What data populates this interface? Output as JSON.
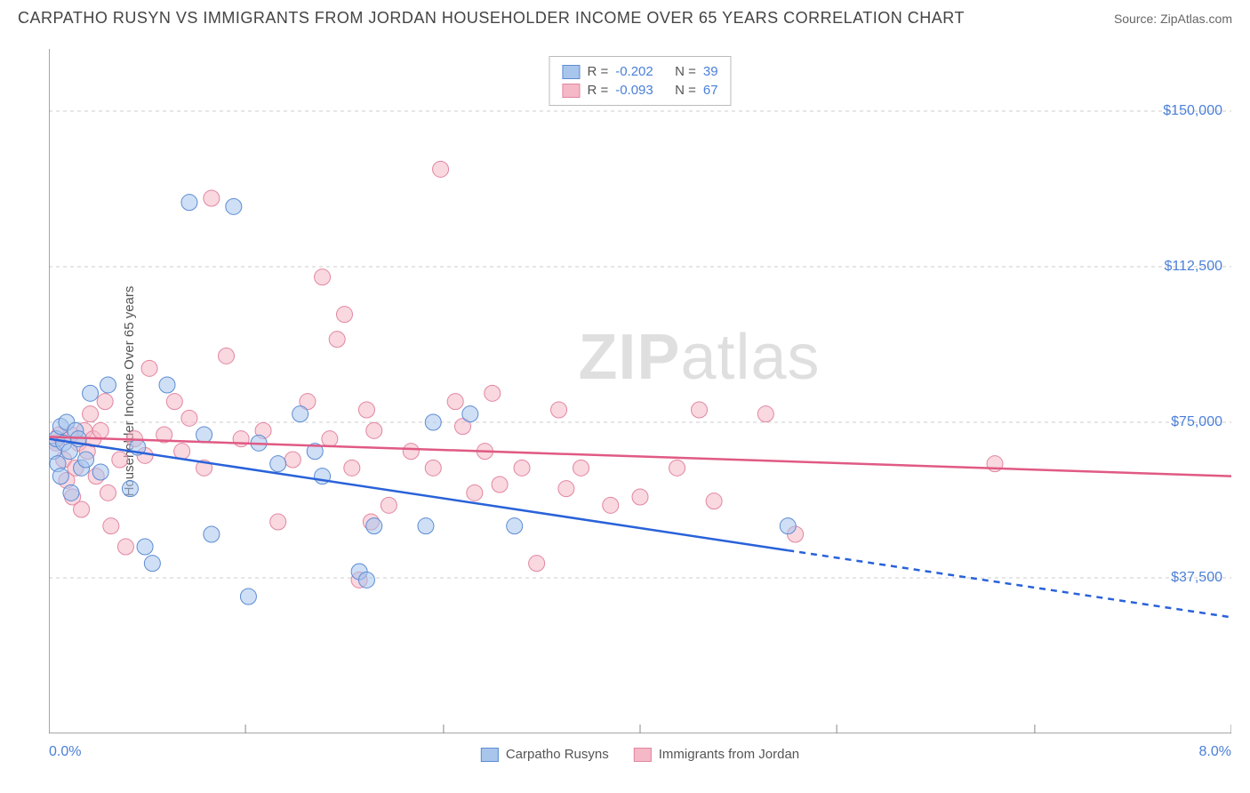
{
  "header": {
    "title": "CARPATHO RUSYN VS IMMIGRANTS FROM JORDAN HOUSEHOLDER INCOME OVER 65 YEARS CORRELATION CHART",
    "source_label": "Source: ZipAtlas.com"
  },
  "ylabel": "Householder Income Over 65 years",
  "watermark": {
    "bold": "ZIP",
    "rest": "atlas"
  },
  "stats": {
    "series1": {
      "R_label": "R =",
      "R": "-0.202",
      "N_label": "N =",
      "N": "39"
    },
    "series2": {
      "R_label": "R =",
      "R": "-0.093",
      "N_label": "N =",
      "N": "67"
    }
  },
  "legend": {
    "series1": "Carpatho Rusyns",
    "series2": "Immigrants from Jordan"
  },
  "axes": {
    "xlim": [
      0,
      8
    ],
    "ylim": [
      0,
      165000
    ],
    "xticks": [
      0,
      1.33,
      2.67,
      4.0,
      5.33,
      6.67,
      8.0
    ],
    "xtick_labels": {
      "left": "0.0%",
      "right": "8.0%"
    },
    "yticks": [
      37500,
      75000,
      112500,
      150000
    ],
    "ytick_labels": [
      "$37,500",
      "$75,000",
      "$112,500",
      "$150,000"
    ]
  },
  "colors": {
    "series1_fill": "#a8c5ec",
    "series1_stroke": "#5b8cd4",
    "series1_line": "#2962d9",
    "series2_fill": "#f4b8c7",
    "series2_stroke": "#e286a0",
    "series2_line": "#e05a84",
    "grid": "#cccccc",
    "axis": "#888888",
    "tick_text": "#4a7fd8",
    "label_text": "#555555"
  },
  "style": {
    "marker_radius": 9,
    "marker_opacity": 0.55,
    "line_width": 2.5,
    "title_fontsize": 18,
    "tick_fontsize": 16
  },
  "trend": {
    "series1": {
      "y_at_x0": 71000,
      "y_at_xmax": 28000,
      "solid_until_x": 5.0
    },
    "series2": {
      "y_at_x0": 71500,
      "y_at_xmax": 62000,
      "solid_until_x": 8.0
    }
  },
  "series1_points": [
    [
      0.03,
      68000
    ],
    [
      0.05,
      71000
    ],
    [
      0.06,
      65000
    ],
    [
      0.08,
      74000
    ],
    [
      0.08,
      62000
    ],
    [
      0.1,
      70000
    ],
    [
      0.12,
      75000
    ],
    [
      0.14,
      68000
    ],
    [
      0.15,
      58000
    ],
    [
      0.18,
      73000
    ],
    [
      0.2,
      71000
    ],
    [
      0.22,
      64000
    ],
    [
      0.25,
      66000
    ],
    [
      0.28,
      82000
    ],
    [
      0.35,
      63000
    ],
    [
      0.4,
      84000
    ],
    [
      0.55,
      59000
    ],
    [
      0.6,
      69000
    ],
    [
      0.65,
      45000
    ],
    [
      0.7,
      41000
    ],
    [
      0.8,
      84000
    ],
    [
      0.95,
      128000
    ],
    [
      1.05,
      72000
    ],
    [
      1.1,
      48000
    ],
    [
      1.25,
      127000
    ],
    [
      1.35,
      33000
    ],
    [
      1.42,
      70000
    ],
    [
      1.55,
      65000
    ],
    [
      1.7,
      77000
    ],
    [
      1.8,
      68000
    ],
    [
      1.85,
      62000
    ],
    [
      2.1,
      39000
    ],
    [
      2.15,
      37000
    ],
    [
      2.2,
      50000
    ],
    [
      2.55,
      50000
    ],
    [
      2.6,
      75000
    ],
    [
      2.85,
      77000
    ],
    [
      3.15,
      50000
    ],
    [
      5.0,
      50000
    ]
  ],
  "series2_points": [
    [
      0.05,
      70000
    ],
    [
      0.07,
      72000
    ],
    [
      0.1,
      66000
    ],
    [
      0.12,
      61000
    ],
    [
      0.15,
      72000
    ],
    [
      0.16,
      57000
    ],
    [
      0.18,
      64000
    ],
    [
      0.2,
      70000
    ],
    [
      0.22,
      54000
    ],
    [
      0.24,
      73000
    ],
    [
      0.26,
      68000
    ],
    [
      0.28,
      77000
    ],
    [
      0.3,
      71000
    ],
    [
      0.32,
      62000
    ],
    [
      0.35,
      73000
    ],
    [
      0.38,
      80000
    ],
    [
      0.42,
      50000
    ],
    [
      0.48,
      66000
    ],
    [
      0.52,
      45000
    ],
    [
      0.58,
      71000
    ],
    [
      0.65,
      67000
    ],
    [
      0.68,
      88000
    ],
    [
      0.78,
      72000
    ],
    [
      0.85,
      80000
    ],
    [
      0.9,
      68000
    ],
    [
      0.95,
      76000
    ],
    [
      1.05,
      64000
    ],
    [
      1.1,
      129000
    ],
    [
      1.2,
      91000
    ],
    [
      1.3,
      71000
    ],
    [
      1.45,
      73000
    ],
    [
      1.55,
      51000
    ],
    [
      1.65,
      66000
    ],
    [
      1.75,
      80000
    ],
    [
      1.85,
      110000
    ],
    [
      1.9,
      71000
    ],
    [
      1.95,
      95000
    ],
    [
      2.0,
      101000
    ],
    [
      2.05,
      64000
    ],
    [
      2.1,
      37000
    ],
    [
      2.15,
      78000
    ],
    [
      2.18,
      51000
    ],
    [
      2.2,
      73000
    ],
    [
      2.3,
      55000
    ],
    [
      2.45,
      68000
    ],
    [
      2.6,
      64000
    ],
    [
      2.65,
      136000
    ],
    [
      2.75,
      80000
    ],
    [
      2.8,
      74000
    ],
    [
      2.88,
      58000
    ],
    [
      2.95,
      68000
    ],
    [
      3.0,
      82000
    ],
    [
      3.05,
      60000
    ],
    [
      3.2,
      64000
    ],
    [
      3.3,
      41000
    ],
    [
      3.45,
      78000
    ],
    [
      3.5,
      59000
    ],
    [
      3.6,
      64000
    ],
    [
      3.8,
      55000
    ],
    [
      4.0,
      57000
    ],
    [
      4.25,
      64000
    ],
    [
      4.4,
      78000
    ],
    [
      4.5,
      56000
    ],
    [
      4.85,
      77000
    ],
    [
      5.05,
      48000
    ],
    [
      6.4,
      65000
    ],
    [
      0.4,
      58000
    ]
  ]
}
